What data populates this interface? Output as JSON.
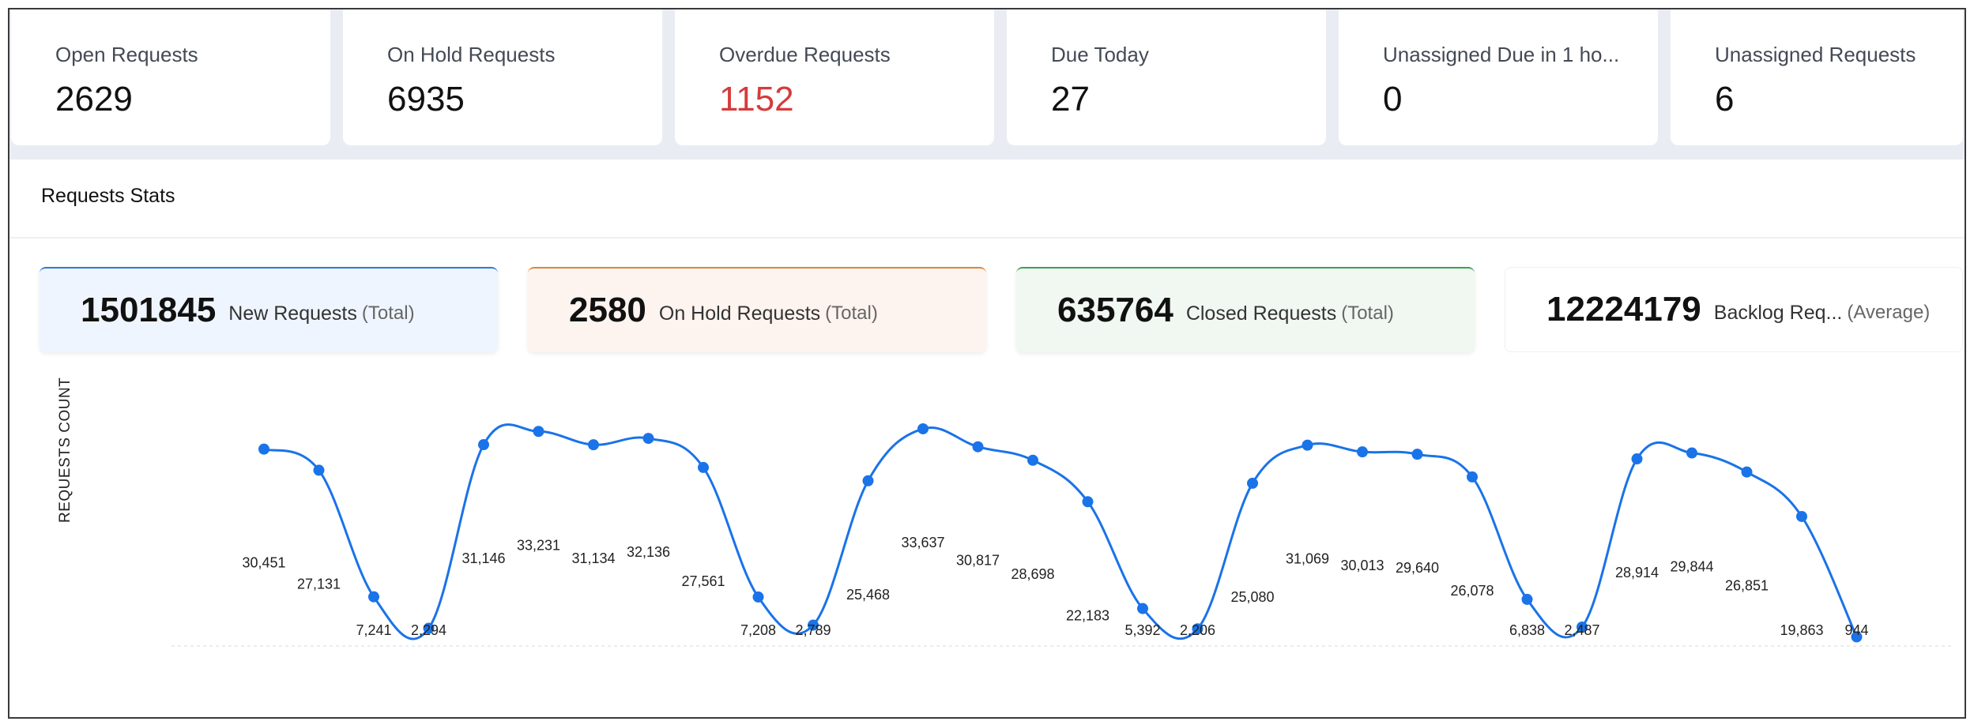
{
  "kpis": [
    {
      "label": "Open Requests",
      "value": "2629"
    },
    {
      "label": "On Hold Requests",
      "value": "6935"
    },
    {
      "label": "Overdue Requests",
      "value": "1152"
    },
    {
      "label": "Due Today",
      "value": "27"
    },
    {
      "label": "Unassigned Due in 1 ho...",
      "value": "0"
    },
    {
      "label": "Unassigned Requests",
      "value": "6"
    }
  ],
  "stats": {
    "title": "Requests Stats",
    "summary": [
      {
        "number": "1501845",
        "label": "New Requests",
        "suffix": "(Total)",
        "accent": "#2b7bd8"
      },
      {
        "number": "2580",
        "label": "On Hold Requests",
        "suffix": "(Total)",
        "accent": "#e0843c"
      },
      {
        "number": "635764",
        "label": "Closed Requests",
        "suffix": "(Total)",
        "accent": "#3aa34e"
      },
      {
        "number": "12224179",
        "label": "Backlog Req...",
        "suffix": "(Average)",
        "accent": "#ffffff"
      }
    ]
  },
  "chart_data": {
    "type": "line",
    "ylabel": "REQUESTS COUNT",
    "line_color": "#1a73e8",
    "values": [
      30451,
      27131,
      7241,
      2294,
      31146,
      33231,
      31134,
      32136,
      27561,
      7208,
      2789,
      25468,
      33637,
      30817,
      28698,
      22183,
      5392,
      2206,
      25080,
      31069,
      30013,
      29640,
      26078,
      6838,
      2487,
      28914,
      29844,
      26851,
      19863,
      944
    ],
    "labels": [
      "30,451",
      "27,131",
      "7,241",
      "2,294",
      "31,146",
      "33,231",
      "31,134",
      "32,136",
      "27,561",
      "7,208",
      "2,789",
      "25,468",
      "33,637",
      "30,817",
      "28,698",
      "22,183",
      "5,392",
      "2,206",
      "25,080",
      "31,069",
      "30,013",
      "29,640",
      "26,078",
      "6,838",
      "2,487",
      "28,914",
      "29,844",
      "26,851",
      "19,863",
      "944"
    ],
    "ylim": [
      0,
      35000
    ]
  }
}
